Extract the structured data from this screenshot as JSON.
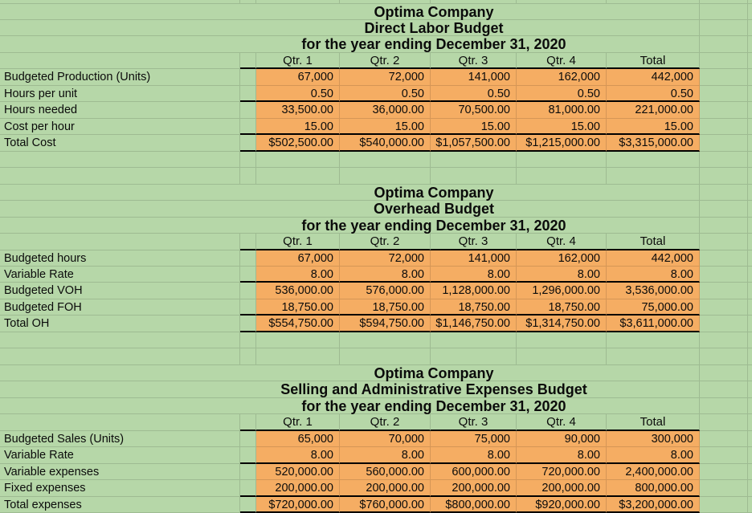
{
  "sheet": {
    "colors": {
      "background_green": "#b6d7a8",
      "cell_fill_orange": "#f5ad63",
      "grid_line": "rgba(0,0,0,0.13)",
      "rule_black": "#000000"
    },
    "tables": [
      {
        "title_lines": [
          "Optima Company",
          "Direct Labor Budget",
          "for the year ending December 31, 2020"
        ],
        "headers": [
          "Qtr. 1",
          "Qtr. 2",
          "Qtr. 3",
          "Qtr. 4",
          "Total"
        ],
        "rows": [
          {
            "label": "Budgeted Production (Units)",
            "values": [
              "67,000",
              "72,000",
              "141,000",
              "162,000",
              "442,000"
            ]
          },
          {
            "label": "Hours per unit",
            "values": [
              "0.50",
              "0.50",
              "0.50",
              "0.50",
              "0.50"
            ]
          },
          {
            "label": "Hours needed",
            "values": [
              "33,500.00",
              "36,000.00",
              "70,500.00",
              "81,000.00",
              "221,000.00"
            ]
          },
          {
            "label": "Cost per hour",
            "values": [
              "15.00",
              "15.00",
              "15.00",
              "15.00",
              "15.00"
            ]
          },
          {
            "label": "Total Cost",
            "values": [
              "$502,500.00",
              "$540,000.00",
              "$1,057,500.00",
              "$1,215,000.00",
              "$3,315,000.00"
            ]
          }
        ]
      },
      {
        "title_lines": [
          "Optima Company",
          "Overhead Budget",
          "for the year ending December 31, 2020"
        ],
        "headers": [
          "Qtr. 1",
          "Qtr. 2",
          "Qtr. 3",
          "Qtr. 4",
          "Total"
        ],
        "rows": [
          {
            "label": "Budgeted hours",
            "values": [
              "67,000",
              "72,000",
              "141,000",
              "162,000",
              "442,000"
            ]
          },
          {
            "label": "Variable Rate",
            "values": [
              "8.00",
              "8.00",
              "8.00",
              "8.00",
              "8.00"
            ]
          },
          {
            "label": "Budgeted VOH",
            "values": [
              "536,000.00",
              "576,000.00",
              "1,128,000.00",
              "1,296,000.00",
              "3,536,000.00"
            ]
          },
          {
            "label": "Budgeted FOH",
            "values": [
              "18,750.00",
              "18,750.00",
              "18,750.00",
              "18,750.00",
              "75,000.00"
            ]
          },
          {
            "label": "Total OH",
            "values": [
              "$554,750.00",
              "$594,750.00",
              "$1,146,750.00",
              "$1,314,750.00",
              "$3,611,000.00"
            ]
          }
        ]
      },
      {
        "title_lines": [
          "Optima Company",
          "Selling and Administrative Expenses Budget",
          "for the year ending December 31, 2020"
        ],
        "headers": [
          "Qtr. 1",
          "Qtr. 2",
          "Qtr. 3",
          "Qtr. 4",
          "Total"
        ],
        "rows": [
          {
            "label": "Budgeted Sales (Units)",
            "values": [
              "65,000",
              "70,000",
              "75,000",
              "90,000",
              "300,000"
            ]
          },
          {
            "label": "Variable Rate",
            "values": [
              "8.00",
              "8.00",
              "8.00",
              "8.00",
              "8.00"
            ]
          },
          {
            "label": "Variable expenses",
            "values": [
              "520,000.00",
              "560,000.00",
              "600,000.00",
              "720,000.00",
              "2,400,000.00"
            ]
          },
          {
            "label": "Fixed expenses",
            "values": [
              "200,000.00",
              "200,000.00",
              "200,000.00",
              "200,000.00",
              "800,000.00"
            ]
          },
          {
            "label": "Total expenses",
            "values": [
              "$720,000.00",
              "$760,000.00",
              "$800,000.00",
              "$920,000.00",
              "$3,200,000.00"
            ]
          }
        ]
      }
    ]
  }
}
